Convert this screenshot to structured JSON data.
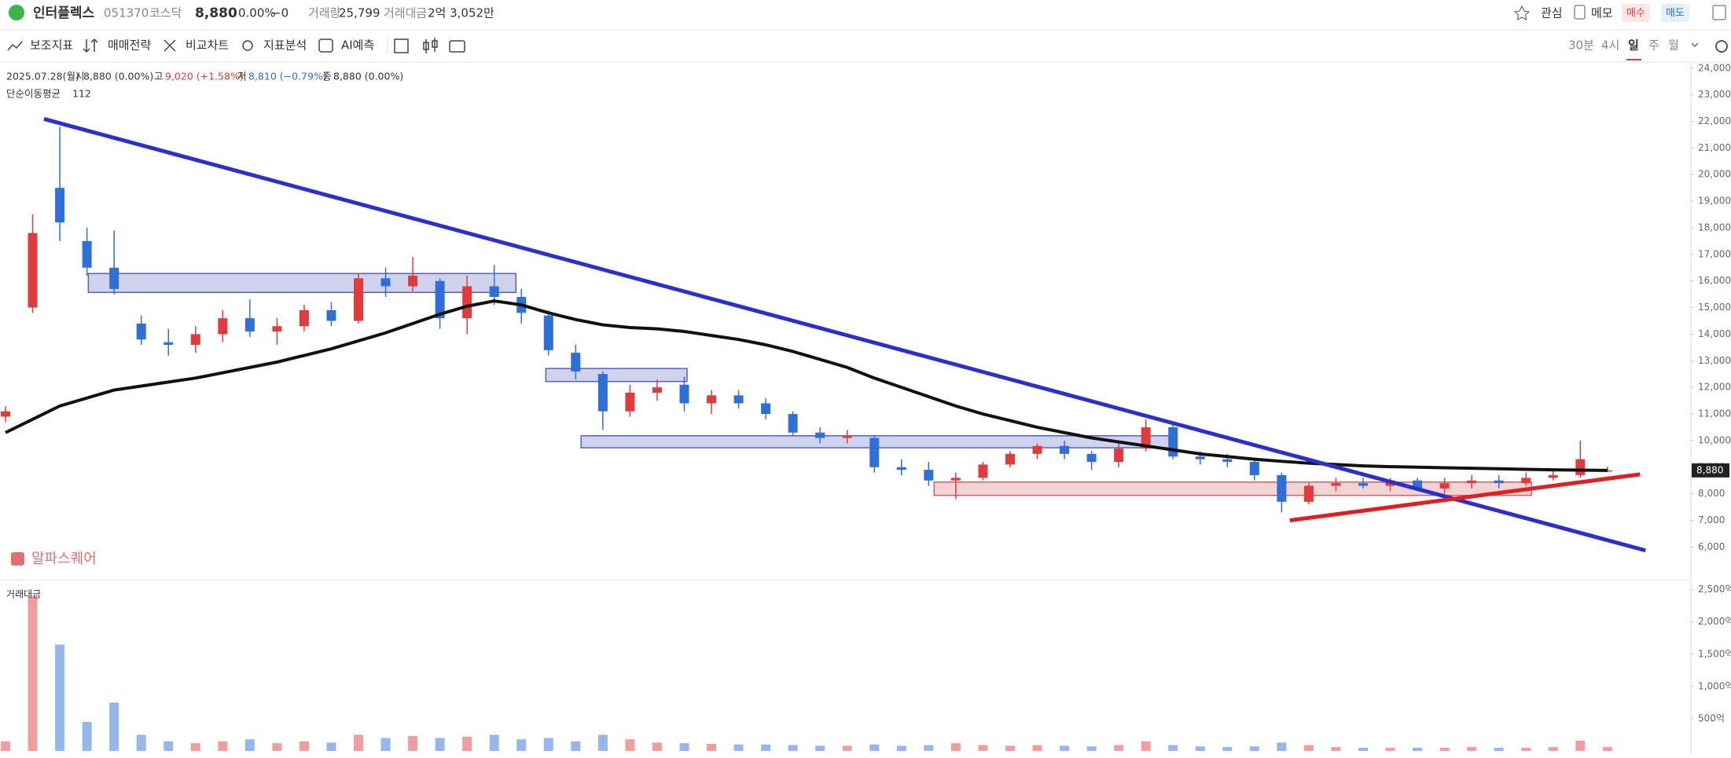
{
  "header": {
    "name": "인터플렉스",
    "code": "051370",
    "market": "코스닥",
    "price": "8,880",
    "change_pct": "0.00%",
    "change": "−0",
    "volume_label": "거래량",
    "volume": "25,799",
    "amount_label": "거래대금",
    "amount": "2억 3,052만",
    "actions": [
      "관심",
      "메모",
      "매수",
      "매도"
    ]
  },
  "toolbar": {
    "tools": [
      "보조지표",
      "매매전략",
      "비교차트",
      "지표분석",
      "AI예측"
    ],
    "periods": [
      "30분",
      "4시",
      "일",
      "주",
      "월"
    ]
  },
  "chart_data": {
    "type": "candlestick",
    "info": {
      "date": "2025.07.28(월)",
      "items": [
        {
          "label": "시",
          "value": "8,880 (0.00%)",
          "color": "#333333"
        },
        {
          "label": "고",
          "value": "9,020 (+1.58%)",
          "color": "#e23b3b"
        },
        {
          "label": "저",
          "value": "8,810 (−0.79%)",
          "color": "#2e6fd8"
        },
        {
          "label": "종",
          "value": "8,880 (0.00%)",
          "color": "#333333"
        }
      ]
    },
    "up_color": "#e23b3b",
    "down_color": "#2e6fd8",
    "open": [
      10900,
      15000,
      19500,
      17500,
      16500,
      14400,
      13700,
      13600,
      14000,
      14600,
      14100,
      14300,
      14900,
      14500,
      16100,
      15800,
      16000,
      14600,
      15800,
      15400,
      14700,
      13300,
      12500,
      11100,
      11800,
      12100,
      11400,
      11700,
      11400,
      11000,
      10300,
      10100,
      10100,
      9000,
      8900,
      8500,
      8600,
      9100,
      9500,
      9800,
      9500,
      9200,
      9700,
      10500,
      9400,
      9300,
      9200,
      8700,
      7700,
      8300,
      8400,
      8300,
      8500,
      8200,
      8400,
      8500,
      8400,
      8600,
      8700,
      8880
    ],
    "high": [
      11300,
      18500,
      21800,
      18000,
      17900,
      14700,
      14200,
      14300,
      14900,
      15300,
      14600,
      15100,
      15200,
      16300,
      16500,
      16900,
      16100,
      16200,
      16600,
      15700,
      14900,
      13600,
      12600,
      12100,
      12300,
      12400,
      11900,
      11900,
      11600,
      11100,
      10500,
      10400,
      10200,
      9300,
      9200,
      8800,
      9200,
      9600,
      9900,
      10000,
      9600,
      9900,
      10800,
      10600,
      9600,
      9500,
      9300,
      8800,
      8400,
      8600,
      8600,
      8600,
      8600,
      8600,
      8700,
      8700,
      8800,
      8900,
      10000,
      9020
    ],
    "low": [
      10700,
      14800,
      17500,
      16200,
      15500,
      13600,
      13200,
      13300,
      13700,
      13900,
      13600,
      14100,
      14300,
      14400,
      15400,
      15600,
      14200,
      14000,
      15100,
      14400,
      13200,
      12300,
      10400,
      10900,
      11500,
      11100,
      11000,
      11200,
      10800,
      10200,
      9900,
      9900,
      8800,
      8700,
      8300,
      7800,
      8500,
      9000,
      9300,
      9300,
      8900,
      9000,
      9600,
      9300,
      9100,
      9000,
      8500,
      7300,
      7600,
      8100,
      8200,
      8100,
      8100,
      8000,
      8200,
      8200,
      8300,
      8500,
      8600,
      8810
    ],
    "close": [
      11100,
      17800,
      18200,
      16500,
      15700,
      13800,
      13600,
      14000,
      14600,
      14100,
      14300,
      14900,
      14500,
      16100,
      15800,
      16200,
      14600,
      15800,
      15400,
      14800,
      13400,
      12600,
      11100,
      11800,
      12000,
      11400,
      11700,
      11400,
      11000,
      10300,
      10100,
      10200,
      9000,
      8900,
      8500,
      8600,
      9100,
      9500,
      9800,
      9500,
      9200,
      9700,
      10500,
      9400,
      9300,
      9200,
      8700,
      7700,
      8300,
      8400,
      8300,
      8500,
      8200,
      8400,
      8500,
      8400,
      8600,
      8700,
      9300,
      8880
    ],
    "ma": {
      "label": "단순이동평균",
      "period": "112",
      "color": "#111111",
      "values": [
        10300,
        10800,
        11300,
        11600,
        11900,
        12050,
        12200,
        12350,
        12550,
        12750,
        12950,
        13200,
        13450,
        13750,
        14050,
        14400,
        14750,
        15050,
        15250,
        15100,
        14800,
        14550,
        14350,
        14250,
        14200,
        14100,
        13950,
        13800,
        13600,
        13350,
        13050,
        12750,
        12350,
        12000,
        11650,
        11300,
        11000,
        10750,
        10500,
        10300,
        10100,
        9950,
        9800,
        9650,
        9500,
        9400,
        9300,
        9220,
        9150,
        9100,
        9050,
        9020,
        9000,
        8980,
        8960,
        8940,
        8920,
        8900,
        8890,
        8880
      ]
    },
    "trendlines": [
      {
        "color": "#2a2fd0",
        "from": [
          1.42,
          22090
        ],
        "to": [
          60.4,
          5870
        ]
      },
      {
        "color": "#e02020",
        "from": [
          47.3,
          7000
        ],
        "to": [
          60.2,
          8730
        ]
      }
    ],
    "boxes": [
      {
        "color": "#5560c0",
        "x0": 3.05,
        "x1": 18.8,
        "top": 16280,
        "bottom": 15570
      },
      {
        "color": "#5560c0",
        "x0": 19.9,
        "x1": 25.1,
        "top": 12710,
        "bottom": 12220
      },
      {
        "color": "#5560c0",
        "x0": 21.2,
        "x1": 43.1,
        "top": 10180,
        "bottom": 9730
      },
      {
        "color": "#d46060",
        "x0": 34.2,
        "x1": 56.2,
        "top": 8440,
        "bottom": 7940
      }
    ],
    "ylim": [
      4800,
      24200
    ],
    "yticks": [
      {
        "value": 6000,
        "label": "6,000"
      },
      {
        "value": 7000,
        "label": "7,000"
      },
      {
        "value": 8000,
        "label": "8,000"
      },
      {
        "value": 9000,
        "label": "9,000"
      },
      {
        "value": 10000,
        "label": "10,000"
      },
      {
        "value": 11000,
        "label": "11,000"
      },
      {
        "value": 12000,
        "label": "12,000"
      },
      {
        "value": 13000,
        "label": "13,000"
      },
      {
        "value": 14000,
        "label": "14,000"
      },
      {
        "value": 15000,
        "label": "15,000"
      },
      {
        "value": 16000,
        "label": "16,000"
      },
      {
        "value": 17000,
        "label": "17,000"
      },
      {
        "value": 18000,
        "label": "18,000"
      },
      {
        "value": 19000,
        "label": "19,000"
      },
      {
        "value": 20000,
        "label": "20,000"
      },
      {
        "value": 21000,
        "label": "21,000"
      },
      {
        "value": 22000,
        "label": "22,000"
      },
      {
        "value": 23000,
        "label": "23,000"
      },
      {
        "value": 24000,
        "label": "24,000"
      }
    ],
    "last_price": {
      "value": 8880,
      "label": "8,880"
    },
    "watermark": "알파스퀘어",
    "volume": {
      "label": "거래대금",
      "values": [
        150,
        2400,
        1650,
        450,
        750,
        250,
        150,
        120,
        150,
        180,
        120,
        150,
        130,
        250,
        200,
        230,
        200,
        220,
        250,
        180,
        200,
        150,
        250,
        180,
        130,
        120,
        110,
        100,
        100,
        90,
        80,
        80,
        100,
        80,
        90,
        120,
        90,
        80,
        90,
        80,
        70,
        90,
        150,
        90,
        70,
        60,
        70,
        130,
        90,
        60,
        50,
        50,
        50,
        50,
        60,
        50,
        50,
        60,
        160,
        60
      ],
      "ylim": [
        0,
        2630
      ],
      "yticks": [
        {
          "value": 500,
          "label": "500억"
        },
        {
          "value": 1000,
          "label": "1,000억"
        },
        {
          "value": 1500,
          "label": "1,500억"
        },
        {
          "value": 2000,
          "label": "2,000억"
        },
        {
          "value": 2500,
          "label": "2,500억"
        }
      ]
    }
  }
}
